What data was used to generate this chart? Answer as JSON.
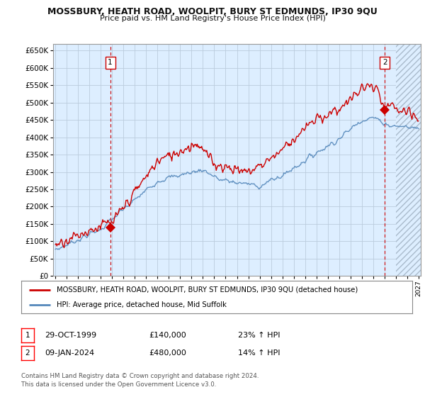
{
  "title": "MOSSBURY, HEATH ROAD, WOOLPIT, BURY ST EDMUNDS, IP30 9QU",
  "subtitle": "Price paid vs. HM Land Registry's House Price Index (HPI)",
  "legend_line1": "MOSSBURY, HEATH ROAD, WOOLPIT, BURY ST EDMUNDS, IP30 9QU (detached house)",
  "legend_line2": "HPI: Average price, detached house, Mid Suffolk",
  "annotation1_label": "1",
  "annotation1_date": "29-OCT-1999",
  "annotation1_price": "£140,000",
  "annotation1_hpi": "23% ↑ HPI",
  "annotation2_label": "2",
  "annotation2_date": "09-JAN-2024",
  "annotation2_price": "£480,000",
  "annotation2_hpi": "14% ↑ HPI",
  "footer": "Contains HM Land Registry data © Crown copyright and database right 2024.\nThis data is licensed under the Open Government Licence v3.0.",
  "sale1_x": 1999.83,
  "sale1_y": 140000,
  "sale2_x": 2024.03,
  "sale2_y": 480000,
  "ylim": [
    0,
    670000
  ],
  "xlim_start": 1995,
  "xlim_end": 2027,
  "red_color": "#cc0000",
  "blue_color": "#5588bb",
  "bg_color": "#ddeeff",
  "hatch_color": "#aabbcc",
  "grid_color": "#bbccdd",
  "title_color": "#111111",
  "yticks": [
    0,
    50000,
    100000,
    150000,
    200000,
    250000,
    300000,
    350000,
    400000,
    450000,
    500000,
    550000,
    600000,
    650000
  ],
  "xticks": [
    1995,
    1996,
    1997,
    1998,
    1999,
    2000,
    2001,
    2002,
    2003,
    2004,
    2005,
    2006,
    2007,
    2008,
    2009,
    2010,
    2011,
    2012,
    2013,
    2014,
    2015,
    2016,
    2017,
    2018,
    2019,
    2020,
    2021,
    2022,
    2023,
    2024,
    2025,
    2026,
    2027
  ]
}
